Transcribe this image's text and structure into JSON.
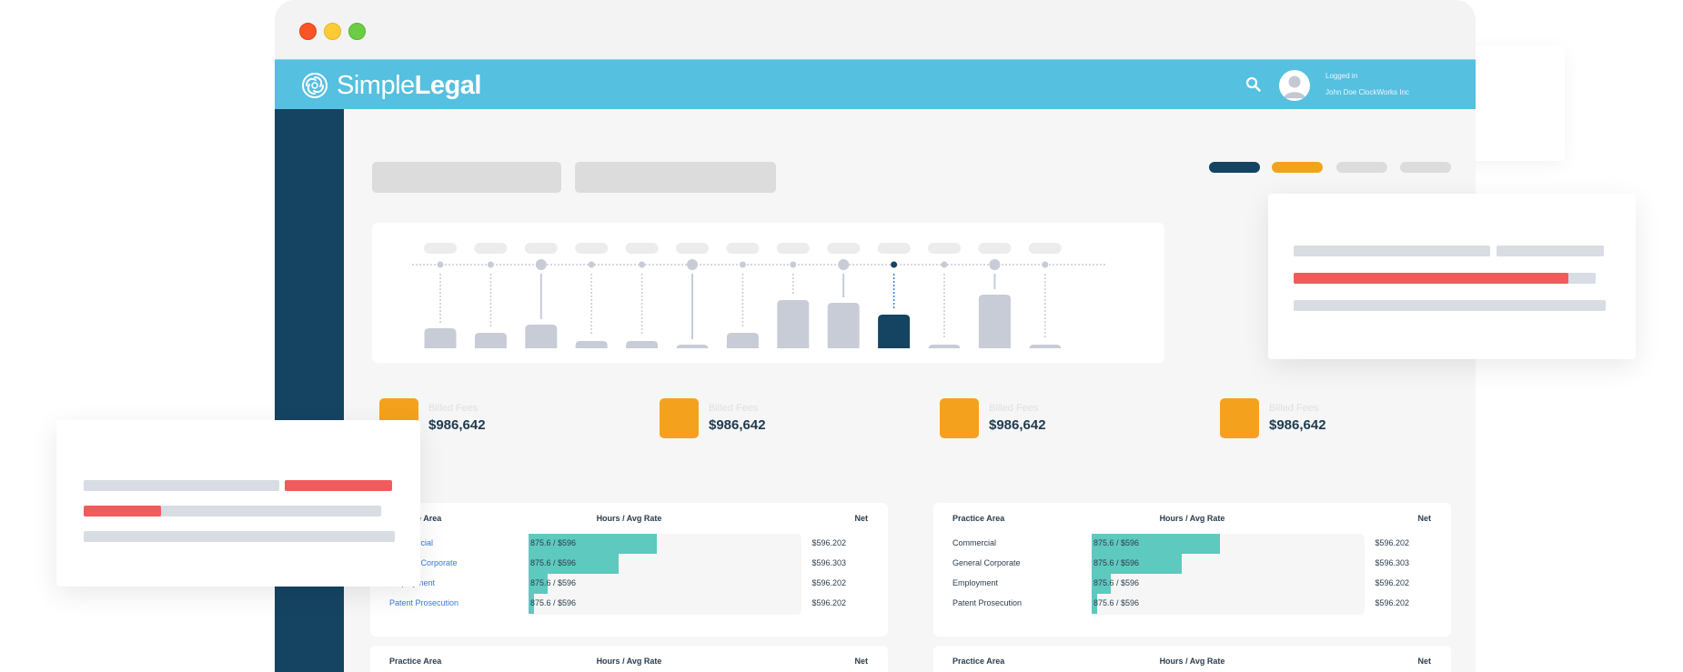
{
  "colors": {
    "header": "#55c0e0",
    "sidebar": "#154462",
    "accent_orange": "#f4a21d",
    "bar_default": "#c7ccd6",
    "bar_selected": "#154462",
    "table_bar": "#5ec9be",
    "link_blue": "#3a7bd5",
    "alert_red": "#f05c5c"
  },
  "header": {
    "logo_light": "Simple",
    "logo_bold": "Legal",
    "search_icon": "search-icon",
    "user_status": "Logged in",
    "user_name": "John Doe ClockWorks Inc"
  },
  "filter_pills": [
    {
      "color": "#154462"
    },
    {
      "color": "#f4a21d"
    },
    {
      "color": "#dcdcdc"
    },
    {
      "color": "#dcdcdc"
    }
  ],
  "chart_data": {
    "type": "bar",
    "title": "",
    "categories": [
      "",
      "",
      "",
      "",
      "",
      "",
      "",
      "",
      "",
      "",
      "",
      "",
      ""
    ],
    "values": [
      22,
      17,
      26,
      8,
      8,
      4,
      17,
      53,
      50,
      37,
      4,
      59,
      4
    ],
    "selected_index": 9,
    "ylim": [
      0,
      100
    ],
    "grid": false
  },
  "stats": [
    {
      "label": "Billed Fees",
      "value": "$986,642"
    },
    {
      "label": "Billed Fees",
      "value": "$986,642"
    },
    {
      "label": "Billed Fees",
      "value": "$986,642"
    },
    {
      "label": "Billed Fees",
      "value": "$986,642"
    }
  ],
  "tables": [
    {
      "headers": {
        "area": "Practice Area",
        "hours": "Hours / Avg Rate",
        "net": "Net"
      },
      "link_style": true,
      "rows": [
        {
          "area": "Commercial",
          "rate": "875.6 / $596",
          "net": "$596.202",
          "fill": 0.47
        },
        {
          "area": "General Corporate",
          "rate": "875.6 / $596",
          "net": "$596.303",
          "fill": 0.33
        },
        {
          "area": "Employment",
          "rate": "875.6 / $596",
          "net": "$596.202",
          "fill": 0.07
        },
        {
          "area": "Patent Prosecution",
          "rate": "875.6 / $596",
          "net": "$596.202",
          "fill": 0.02
        }
      ]
    },
    {
      "headers": {
        "area": "Practice Area",
        "hours": "Hours / Avg Rate",
        "net": "Net"
      },
      "link_style": false,
      "rows": [
        {
          "area": "Commercial",
          "rate": "875.6 / $596",
          "net": "$596.202",
          "fill": 0.47
        },
        {
          "area": "General Corporate",
          "rate": "875.6 / $596",
          "net": "$596.303",
          "fill": 0.33
        },
        {
          "area": "Employment",
          "rate": "875.6 / $596",
          "net": "$596.202",
          "fill": 0.07
        },
        {
          "area": "Patent Prosecution",
          "rate": "875.6 / $596",
          "net": "$596.202",
          "fill": 0.02
        }
      ]
    },
    {
      "headers": {
        "area": "Practice Area",
        "hours": "Hours / Avg Rate",
        "net": "Net"
      }
    },
    {
      "headers": {
        "area": "Practice Area",
        "hours": "Hours / Avg Rate",
        "net": "Net"
      }
    }
  ],
  "right_card": {
    "progress": 0.91
  },
  "left_card": {
    "progress": 0.26
  }
}
